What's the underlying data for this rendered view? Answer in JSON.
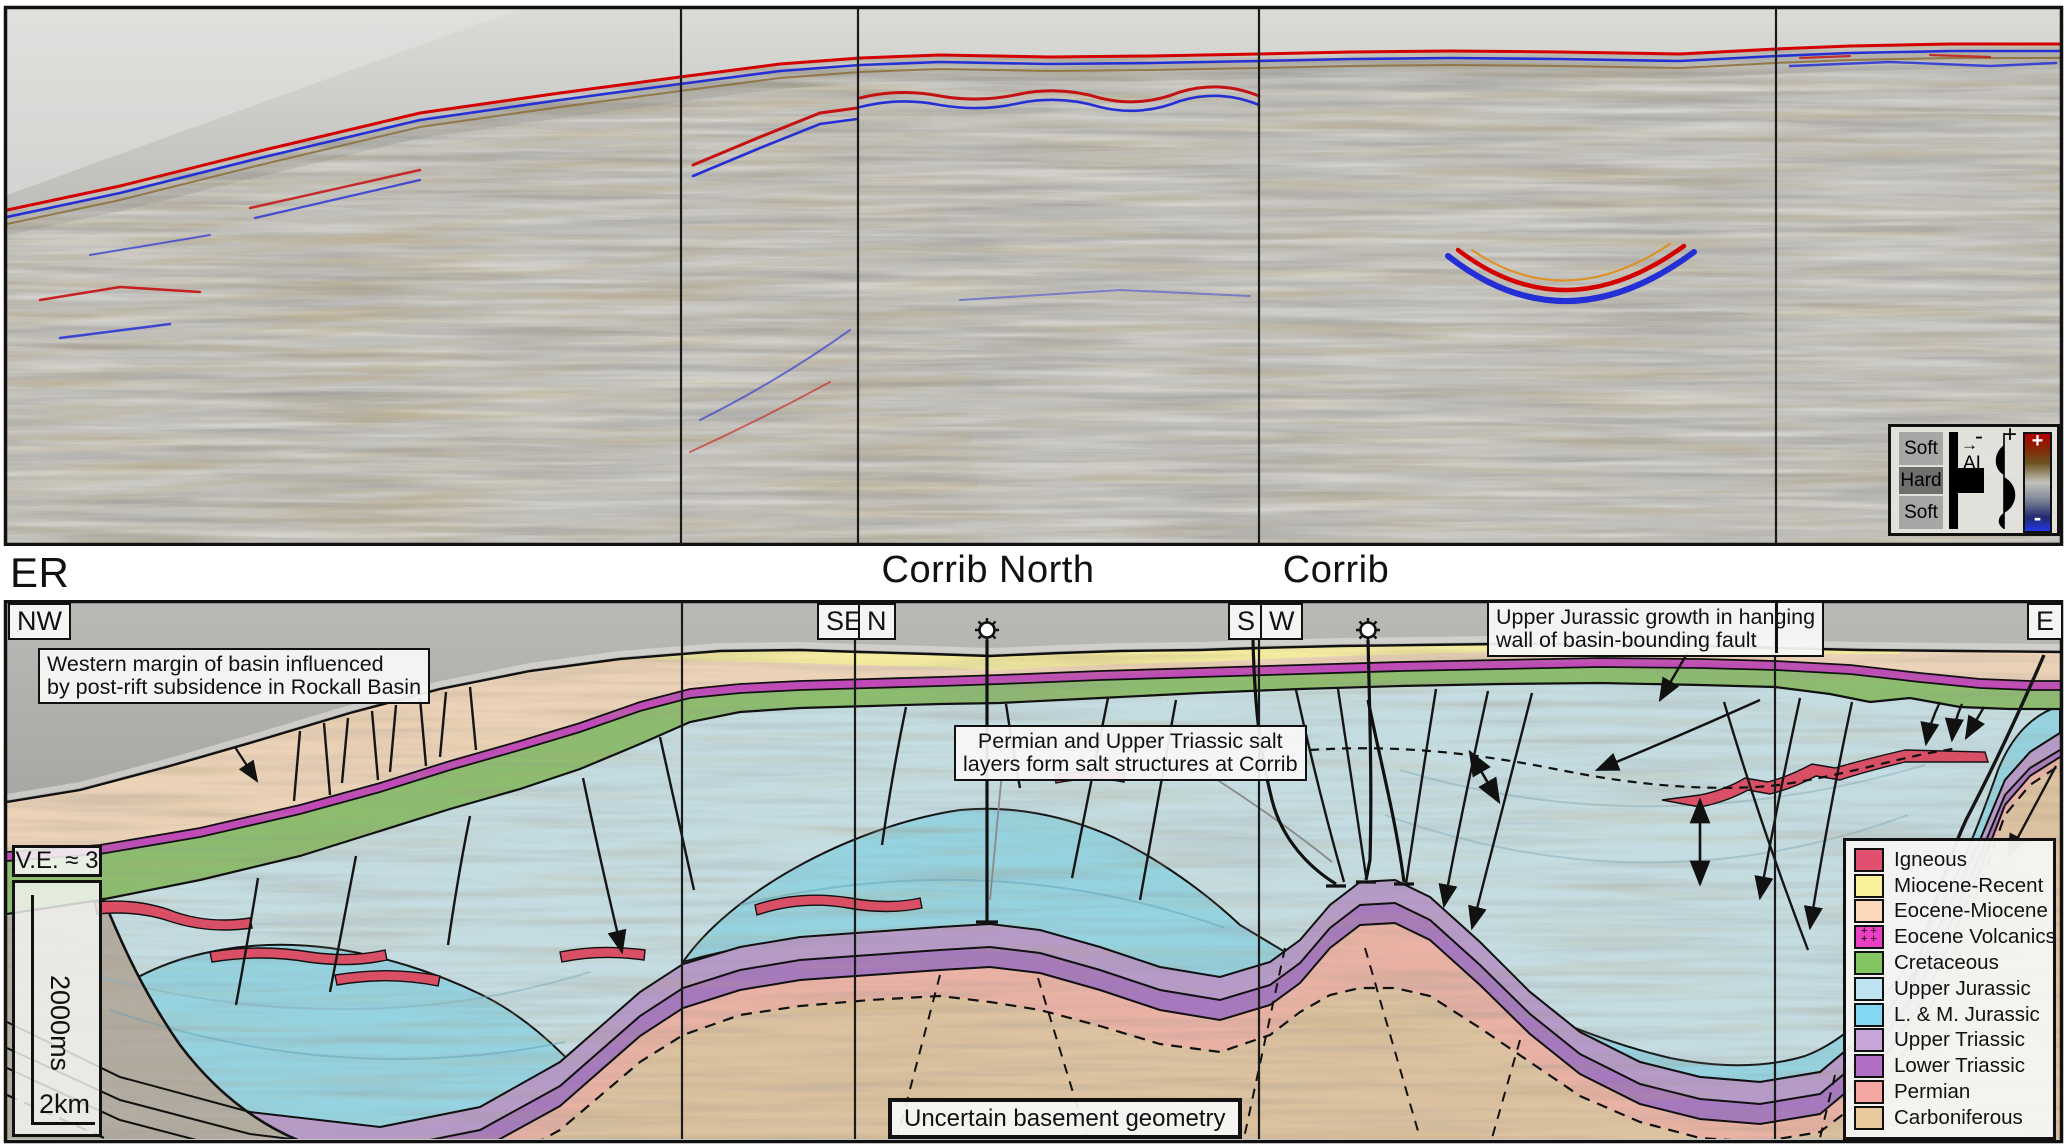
{
  "labels": {
    "line_name": "ER",
    "corrib_north": "Corrib North",
    "corrib": "Corrib"
  },
  "compass": {
    "nw": "NW",
    "se": "SE",
    "n": "N",
    "s": "S",
    "w": "W",
    "e": "E"
  },
  "scale_bar": {
    "vertical_exaggeration": "V.E. ≈ 3",
    "time_label": "2000ms",
    "distance_label": "2km"
  },
  "annotations": {
    "western_margin": {
      "line1": "Western margin of basin influenced",
      "line2": "by post-rift subsidence in Rockall Basin"
    },
    "salt": {
      "line1": "Permian and Upper Triassic salt",
      "line2": "layers form salt structures at Corrib"
    },
    "growth": {
      "line1": "Upper Jurassic growth in hanging",
      "line2": "wall of basin-bounding fault"
    },
    "basement": {
      "text": "Uncertain basement geometry"
    }
  },
  "polarity_inset": {
    "soft_upper": "Soft",
    "hard": "Hard",
    "soft_lower": "Soft",
    "impedance_label": "AI",
    "wavelet_minus": "-",
    "wavelet_plus": "+",
    "colorbar_plus": "+",
    "colorbar_minus": "-"
  },
  "legend": {
    "items": [
      {
        "label": "Igneous",
        "color": "#e2506f",
        "pattern": "solid"
      },
      {
        "label": "Miocene-Recent",
        "color": "#f9f29b",
        "pattern": "solid"
      },
      {
        "label": "Eocene-Miocene",
        "color": "#fbd9ba",
        "pattern": "solid"
      },
      {
        "label": "Eocene Volcanics",
        "color": "#e93fc1",
        "pattern": "plus"
      },
      {
        "label": "Cretaceous",
        "color": "#83c561",
        "pattern": "solid"
      },
      {
        "label": "Upper Jurassic",
        "color": "#bfe3f0",
        "pattern": "solid"
      },
      {
        "label": "L. & M. Jurassic",
        "color": "#84d7f0",
        "pattern": "solid"
      },
      {
        "label": "Upper Triassic",
        "color": "#c6a6d8",
        "pattern": "solid"
      },
      {
        "label": "Lower Triassic",
        "color": "#b06fc5",
        "pattern": "solid"
      },
      {
        "label": "Permian",
        "color": "#f4a6a3",
        "pattern": "solid"
      },
      {
        "label": "Carboniferous",
        "color": "#e8c89d",
        "pattern": "solid"
      }
    ]
  },
  "section_colors": {
    "water": "#b1b0ad",
    "wedge": "#b2aca1",
    "eocene_miocene": "#ecd3b8",
    "miocene_recent": "#f3eb9e",
    "eocene_volcanics": "#c049b8",
    "cretaceous": "#8cbd6f",
    "upper_jurassic": "#c5dde2",
    "lm_jurassic": "#96d3e0",
    "upper_triassic": "#b69bc9",
    "lower_triassic": "#a678be",
    "permian": "#e9b2a5",
    "carboniferous": "#dcc2a0",
    "igneous": "#d84f66",
    "seabed_red": "#d40000",
    "seabed_blue": "#2430d6"
  }
}
